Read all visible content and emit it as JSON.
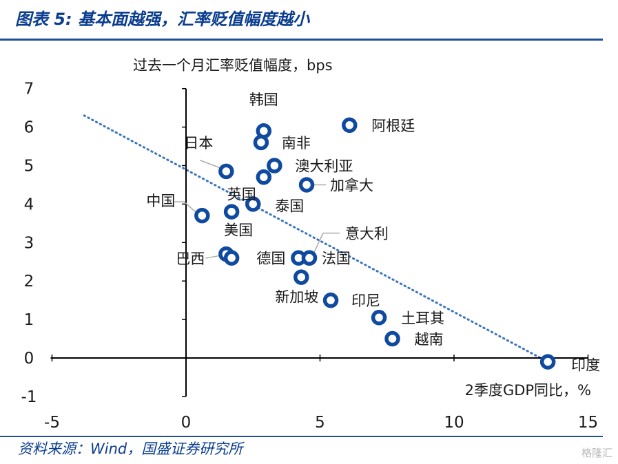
{
  "figure": {
    "title": "图表 5: 基本面越强，汇率贬值幅度越小",
    "source": "资料来源：Wind，国盛证券研究所",
    "watermark": "格隆汇"
  },
  "chart_data": {
    "type": "scatter",
    "title": "",
    "ylabel": "过去一个月汇率贬值幅度，bps",
    "xlabel": "2季度GDP同比，%",
    "xlim": [
      -5,
      15
    ],
    "ylim": [
      -1,
      7
    ],
    "xticks": [
      -5,
      0,
      5,
      10,
      15
    ],
    "yticks": [
      -1,
      0,
      1,
      2,
      3,
      4,
      5,
      6,
      7
    ],
    "grid": false,
    "legend": "none",
    "marker_color": "#0f4aa0",
    "trendline": {
      "style": "dotted",
      "color": "#3a74c2",
      "from": [
        -3.8,
        6.3
      ],
      "to": [
        13.5,
        -0.1
      ]
    },
    "points": [
      {
        "label": "韩国",
        "x": 2.9,
        "y": 5.9
      },
      {
        "label": "阿根廷",
        "x": 6.1,
        "y": 6.05
      },
      {
        "label": "南非",
        "x": 2.8,
        "y": 5.6
      },
      {
        "label": "日本",
        "x": 1.5,
        "y": 4.85
      },
      {
        "label": "澳大利亚",
        "x": 3.3,
        "y": 5.0
      },
      {
        "label": "英国",
        "x": 2.9,
        "y": 4.7
      },
      {
        "label": "加拿大",
        "x": 4.5,
        "y": 4.5
      },
      {
        "label": "中国",
        "x": 0.6,
        "y": 3.7
      },
      {
        "label": "泰国",
        "x": 2.5,
        "y": 4.0
      },
      {
        "label": "美国",
        "x": 1.7,
        "y": 3.8
      },
      {
        "label": "意大利",
        "x": 4.6,
        "y": 2.6
      },
      {
        "label": "巴西",
        "x": 1.5,
        "y": 2.7
      },
      {
        "label": "德国",
        "x": 4.2,
        "y": 2.6
      },
      {
        "label": "法国",
        "x": 4.6,
        "y": 2.6
      },
      {
        "label": "新加坡",
        "x": 4.3,
        "y": 2.1
      },
      {
        "label": "印尼",
        "x": 5.4,
        "y": 1.5
      },
      {
        "label": "土耳其",
        "x": 7.2,
        "y": 1.05
      },
      {
        "label": "越南",
        "x": 7.7,
        "y": 0.5
      },
      {
        "label": "印度",
        "x": 13.5,
        "y": -0.1
      }
    ],
    "extra_markers": [
      {
        "x": 1.7,
        "y": 2.6
      }
    ]
  }
}
